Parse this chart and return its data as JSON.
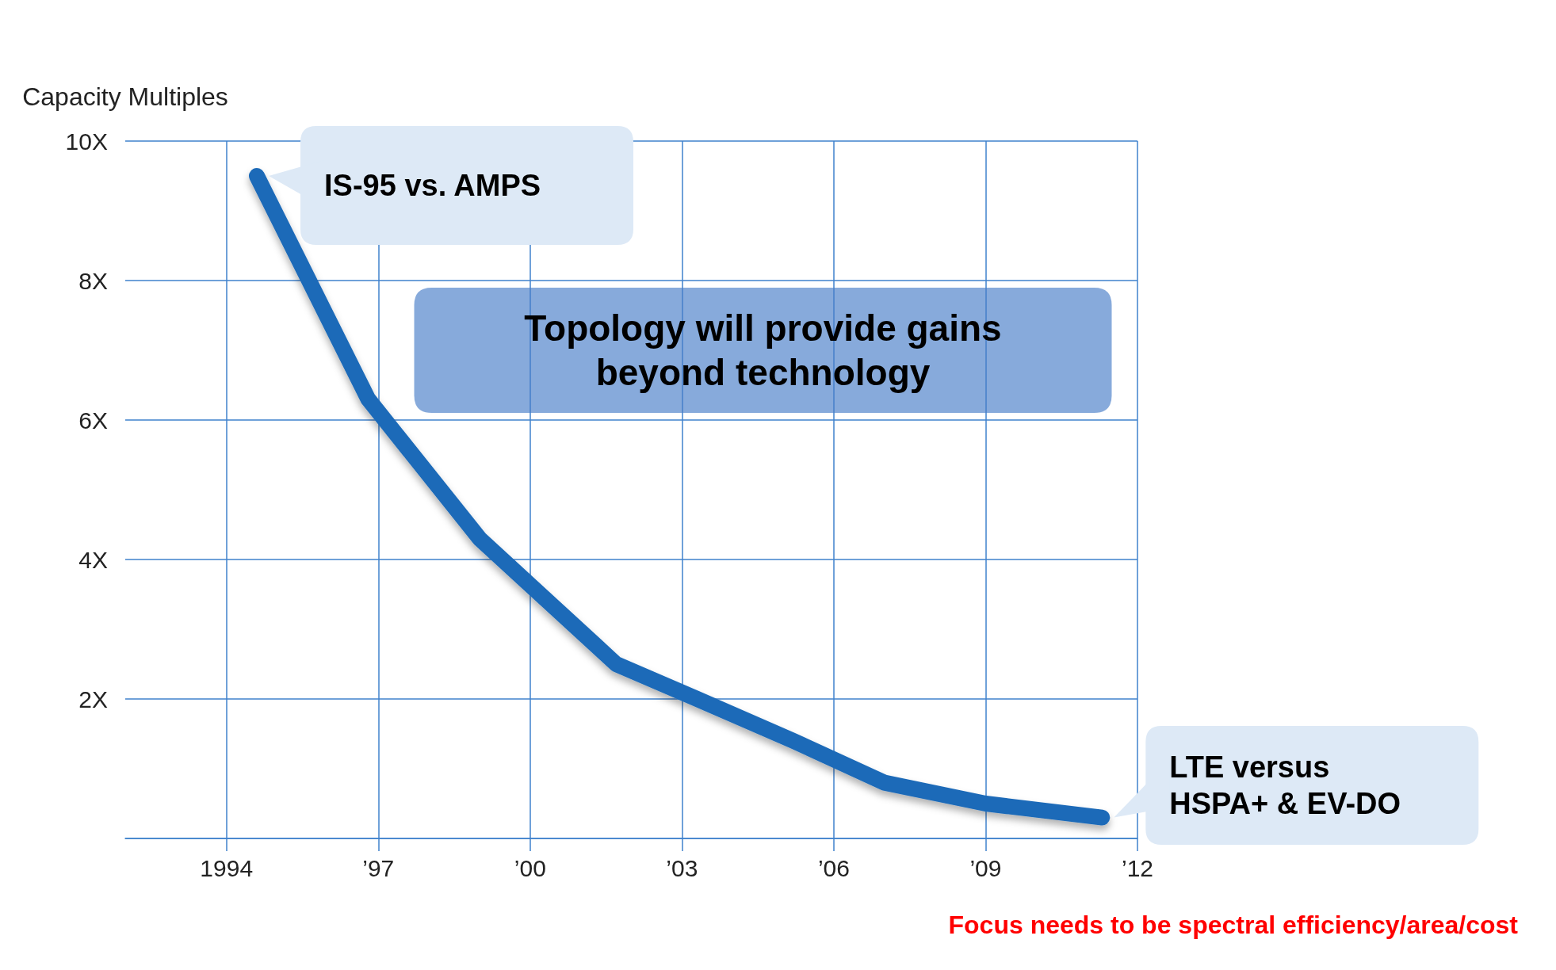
{
  "chart_data": {
    "type": "line",
    "ylabel": "Capacity Multiples",
    "x": [
      1994.6,
      1996.8,
      1999.0,
      2001.7,
      2003.3,
      2005.2,
      2007.0,
      2009.0,
      2011.3
    ],
    "values": [
      9.5,
      6.3,
      4.3,
      2.5,
      2.0,
      1.4,
      0.8,
      0.5,
      0.3
    ],
    "color": "#1f6bb8",
    "xlim": [
      1992,
      2012
    ],
    "xticks": [
      1994,
      {
        "value": 1997,
        "label": "’97"
      },
      {
        "value": 2000,
        "label": "’00"
      },
      {
        "value": 2003,
        "label": "’03"
      },
      {
        "value": 2006,
        "label": "’06"
      },
      {
        "value": 2009,
        "label": "’09"
      },
      {
        "value": 2012,
        "label": "’12"
      }
    ],
    "ylim": [
      0,
      10
    ],
    "yticks": [
      {
        "value": 0,
        "label": null
      },
      {
        "value": 2,
        "label": "2X"
      },
      {
        "value": 4,
        "label": "4X"
      },
      {
        "value": 6,
        "label": "6X"
      },
      {
        "value": 8,
        "label": "8X"
      },
      {
        "value": 10,
        "label": "10X"
      }
    ],
    "grid": true,
    "marker": "none",
    "annotations": [
      {
        "text": "IS-95 vs. AMPS",
        "x": 1994.6,
        "y": 9.5
      },
      "Topology will provide gains beyond technology",
      {
        "text": "LTE versus HSPA+ & EV-DO",
        "x": 2011.3,
        "y": 0.3
      },
      "Focus needs to be spectral efficiency/area/cost"
    ]
  }
}
